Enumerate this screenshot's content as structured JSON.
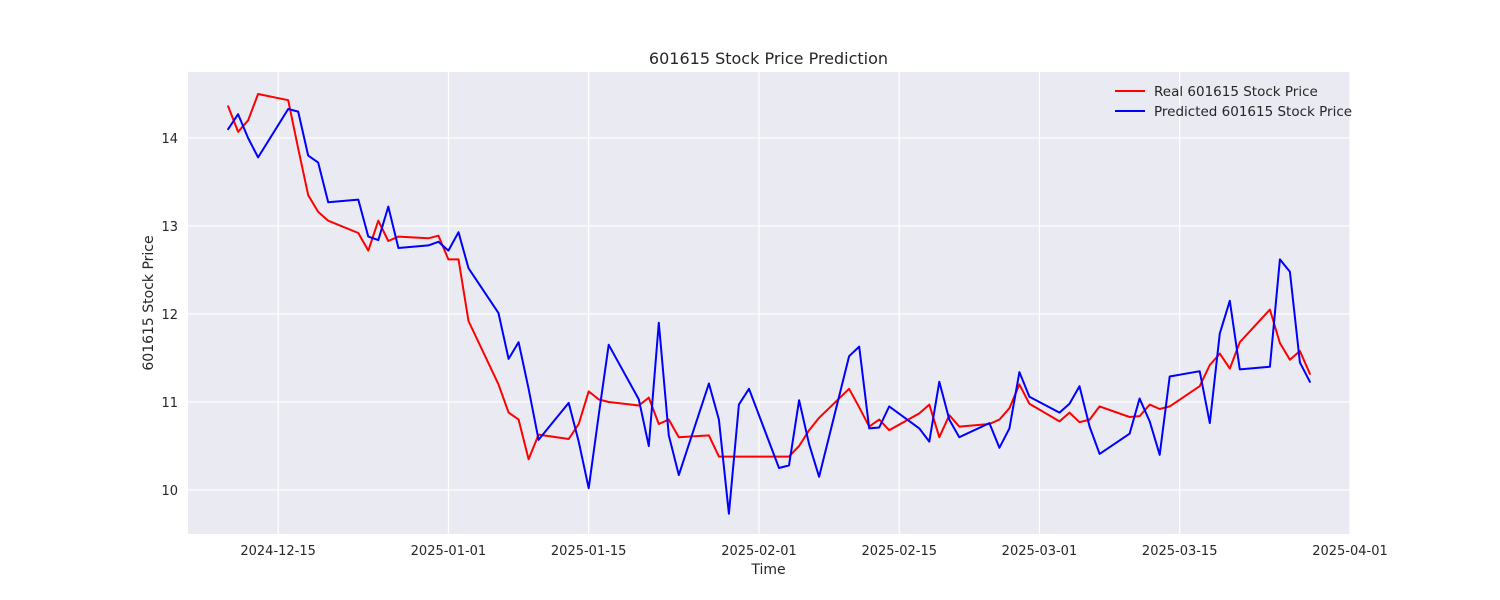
{
  "chart_data": {
    "type": "line",
    "title": "601615 Stock Price Prediction",
    "xlabel": "Time",
    "ylabel": "601615 Stock Price",
    "xlim": [
      "2024-12-06",
      "2025-04-01"
    ],
    "ylim": [
      9.5,
      14.75
    ],
    "x_ticks": [
      {
        "date": "2024-12-15",
        "label": "2024-12-15"
      },
      {
        "date": "2025-01-01",
        "label": "2025-01-01"
      },
      {
        "date": "2025-01-15",
        "label": "2025-01-15"
      },
      {
        "date": "2025-02-01",
        "label": "2025-02-01"
      },
      {
        "date": "2025-02-15",
        "label": "2025-02-15"
      },
      {
        "date": "2025-03-01",
        "label": "2025-03-01"
      },
      {
        "date": "2025-03-15",
        "label": "2025-03-15"
      },
      {
        "date": "2025-04-01",
        "label": "2025-04-01"
      }
    ],
    "y_ticks": [
      {
        "value": 10,
        "label": "10"
      },
      {
        "value": 11,
        "label": "11"
      },
      {
        "value": 12,
        "label": "12"
      },
      {
        "value": 13,
        "label": "13"
      },
      {
        "value": 14,
        "label": "14"
      }
    ],
    "grid": true,
    "legend_position": "top-right",
    "series": [
      {
        "name": "Real 601615 Stock Price",
        "color": "#ff0000",
        "points": [
          [
            "2024-12-10",
            14.36
          ],
          [
            "2024-12-11",
            14.07
          ],
          [
            "2024-12-12",
            14.2
          ],
          [
            "2024-12-13",
            14.5
          ],
          [
            "2024-12-16",
            14.43
          ],
          [
            "2024-12-17",
            13.88
          ],
          [
            "2024-12-18",
            13.35
          ],
          [
            "2024-12-19",
            13.16
          ],
          [
            "2024-12-20",
            13.06
          ],
          [
            "2024-12-23",
            12.92
          ],
          [
            "2024-12-24",
            12.72
          ],
          [
            "2024-12-25",
            13.06
          ],
          [
            "2024-12-26",
            12.83
          ],
          [
            "2024-12-27",
            12.88
          ],
          [
            "2024-12-30",
            12.86
          ],
          [
            "2024-12-31",
            12.89
          ],
          [
            "2025-01-01",
            12.62
          ],
          [
            "2025-01-02",
            12.62
          ],
          [
            "2025-01-03",
            11.92
          ],
          [
            "2025-01-06",
            11.2
          ],
          [
            "2025-01-07",
            10.88
          ],
          [
            "2025-01-08",
            10.8
          ],
          [
            "2025-01-09",
            10.35
          ],
          [
            "2025-01-10",
            10.63
          ],
          [
            "2025-01-13",
            10.58
          ],
          [
            "2025-01-14",
            10.75
          ],
          [
            "2025-01-15",
            11.12
          ],
          [
            "2025-01-16",
            11.03
          ],
          [
            "2025-01-17",
            11.0
          ],
          [
            "2025-01-20",
            10.96
          ],
          [
            "2025-01-21",
            11.05
          ],
          [
            "2025-01-22",
            10.75
          ],
          [
            "2025-01-23",
            10.8
          ],
          [
            "2025-01-24",
            10.6
          ],
          [
            "2025-01-27",
            10.62
          ],
          [
            "2025-01-28",
            10.38
          ],
          [
            "2025-02-04",
            10.38
          ],
          [
            "2025-02-05",
            10.5
          ],
          [
            "2025-02-06",
            10.68
          ],
          [
            "2025-02-07",
            10.82
          ],
          [
            "2025-02-10",
            11.15
          ],
          [
            "2025-02-11",
            10.94
          ],
          [
            "2025-02-12",
            10.72
          ],
          [
            "2025-02-13",
            10.8
          ],
          [
            "2025-02-14",
            10.68
          ],
          [
            "2025-02-17",
            10.87
          ],
          [
            "2025-02-18",
            10.97
          ],
          [
            "2025-02-19",
            10.6
          ],
          [
            "2025-02-20",
            10.85
          ],
          [
            "2025-02-21",
            10.72
          ],
          [
            "2025-02-24",
            10.75
          ],
          [
            "2025-02-25",
            10.8
          ],
          [
            "2025-02-26",
            10.93
          ],
          [
            "2025-02-27",
            11.2
          ],
          [
            "2025-02-28",
            10.98
          ],
          [
            "2025-03-03",
            10.78
          ],
          [
            "2025-03-04",
            10.88
          ],
          [
            "2025-03-05",
            10.77
          ],
          [
            "2025-03-06",
            10.8
          ],
          [
            "2025-03-07",
            10.95
          ],
          [
            "2025-03-10",
            10.83
          ],
          [
            "2025-03-11",
            10.84
          ],
          [
            "2025-03-12",
            10.97
          ],
          [
            "2025-03-13",
            10.92
          ],
          [
            "2025-03-14",
            10.95
          ],
          [
            "2025-03-17",
            11.18
          ],
          [
            "2025-03-18",
            11.42
          ],
          [
            "2025-03-19",
            11.55
          ],
          [
            "2025-03-20",
            11.38
          ],
          [
            "2025-03-21",
            11.68
          ],
          [
            "2025-03-24",
            12.05
          ],
          [
            "2025-03-25",
            11.67
          ],
          [
            "2025-03-26",
            11.48
          ],
          [
            "2025-03-27",
            11.58
          ],
          [
            "2025-03-28",
            11.32
          ]
        ]
      },
      {
        "name": "Predicted 601615 Stock Price",
        "color": "#0000ff",
        "points": [
          [
            "2024-12-10",
            14.1
          ],
          [
            "2024-12-11",
            14.27
          ],
          [
            "2024-12-12",
            14.0
          ],
          [
            "2024-12-13",
            13.78
          ],
          [
            "2024-12-16",
            14.33
          ],
          [
            "2024-12-17",
            14.3
          ],
          [
            "2024-12-18",
            13.8
          ],
          [
            "2024-12-19",
            13.72
          ],
          [
            "2024-12-20",
            13.27
          ],
          [
            "2024-12-23",
            13.3
          ],
          [
            "2024-12-24",
            12.88
          ],
          [
            "2024-12-25",
            12.84
          ],
          [
            "2024-12-26",
            13.22
          ],
          [
            "2024-12-27",
            12.75
          ],
          [
            "2024-12-30",
            12.78
          ],
          [
            "2024-12-31",
            12.82
          ],
          [
            "2025-01-01",
            12.72
          ],
          [
            "2025-01-02",
            12.93
          ],
          [
            "2025-01-03",
            12.52
          ],
          [
            "2025-01-06",
            12.01
          ],
          [
            "2025-01-07",
            11.49
          ],
          [
            "2025-01-08",
            11.68
          ],
          [
            "2025-01-09",
            11.15
          ],
          [
            "2025-01-10",
            10.57
          ],
          [
            "2025-01-13",
            10.99
          ],
          [
            "2025-01-14",
            10.55
          ],
          [
            "2025-01-15",
            10.02
          ],
          [
            "2025-01-16",
            10.85
          ],
          [
            "2025-01-17",
            11.65
          ],
          [
            "2025-01-20",
            11.03
          ],
          [
            "2025-01-21",
            10.5
          ],
          [
            "2025-01-22",
            11.9
          ],
          [
            "2025-01-23",
            10.62
          ],
          [
            "2025-01-24",
            10.17
          ],
          [
            "2025-01-27",
            11.21
          ],
          [
            "2025-01-28",
            10.8
          ],
          [
            "2025-01-29",
            9.73
          ],
          [
            "2025-01-30",
            10.97
          ],
          [
            "2025-01-31",
            11.15
          ],
          [
            "2025-02-03",
            10.25
          ],
          [
            "2025-02-04",
            10.28
          ],
          [
            "2025-02-05",
            11.02
          ],
          [
            "2025-02-06",
            10.52
          ],
          [
            "2025-02-07",
            10.15
          ],
          [
            "2025-02-10",
            11.52
          ],
          [
            "2025-02-11",
            11.63
          ],
          [
            "2025-02-12",
            10.7
          ],
          [
            "2025-02-13",
            10.71
          ],
          [
            "2025-02-14",
            10.95
          ],
          [
            "2025-02-17",
            10.7
          ],
          [
            "2025-02-18",
            10.55
          ],
          [
            "2025-02-19",
            11.23
          ],
          [
            "2025-02-20",
            10.8
          ],
          [
            "2025-02-21",
            10.6
          ],
          [
            "2025-02-24",
            10.76
          ],
          [
            "2025-02-25",
            10.48
          ],
          [
            "2025-02-26",
            10.7
          ],
          [
            "2025-02-27",
            11.34
          ],
          [
            "2025-02-28",
            11.06
          ],
          [
            "2025-03-03",
            10.88
          ],
          [
            "2025-03-04",
            10.98
          ],
          [
            "2025-03-05",
            11.18
          ],
          [
            "2025-03-06",
            10.72
          ],
          [
            "2025-03-07",
            10.41
          ],
          [
            "2025-03-10",
            10.64
          ],
          [
            "2025-03-11",
            11.04
          ],
          [
            "2025-03-12",
            10.78
          ],
          [
            "2025-03-13",
            10.4
          ],
          [
            "2025-03-14",
            11.29
          ],
          [
            "2025-03-17",
            11.35
          ],
          [
            "2025-03-18",
            10.76
          ],
          [
            "2025-03-19",
            11.78
          ],
          [
            "2025-03-20",
            12.15
          ],
          [
            "2025-03-21",
            11.37
          ],
          [
            "2025-03-24",
            11.4
          ],
          [
            "2025-03-25",
            12.62
          ],
          [
            "2025-03-26",
            12.48
          ],
          [
            "2025-03-27",
            11.45
          ],
          [
            "2025-03-28",
            11.23
          ]
        ]
      }
    ]
  }
}
